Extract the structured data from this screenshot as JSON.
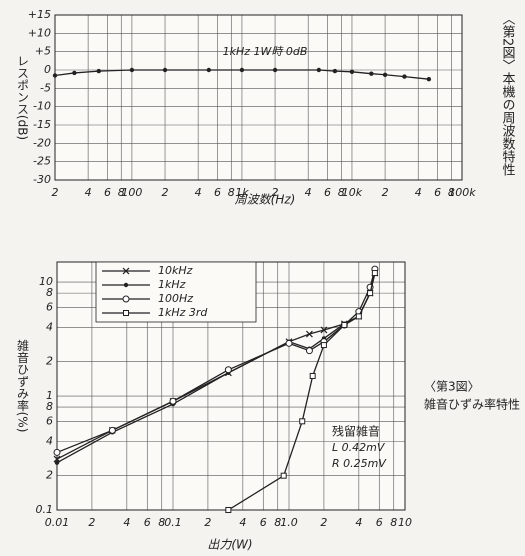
{
  "chart_data": [
    {
      "type": "line",
      "title": "〈第2図〉本機の周波数特性",
      "annotation": "1kHz 1W時 0dB",
      "x_label": "周波数(Hz)",
      "y_label": "レスポンス(dB)",
      "xscale": "log",
      "grid": true,
      "color": "#222222",
      "marker": "dot",
      "x": [
        20,
        30,
        50,
        100,
        200,
        500,
        1000,
        2000,
        5000,
        7000,
        10000,
        15000,
        20000,
        30000,
        50000
      ],
      "values": [
        -1.5,
        -0.8,
        -0.3,
        0,
        0,
        0,
        0,
        0,
        0,
        -0.3,
        -0.5,
        -1,
        -1.3,
        -1.8,
        -2.5
      ],
      "xlim": [
        20,
        100000
      ],
      "ylim": [
        -30,
        15
      ],
      "xticks": [
        {
          "value": 20,
          "label": "2"
        },
        {
          "value": 40,
          "label": "4"
        },
        {
          "value": 60,
          "label": "6"
        },
        {
          "value": 80,
          "label": "8"
        },
        100,
        {
          "value": 200,
          "label": "2"
        },
        {
          "value": 400,
          "label": "4"
        },
        {
          "value": 600,
          "label": "6"
        },
        {
          "value": 800,
          "label": "8"
        },
        {
          "value": 1000,
          "label": "1k"
        },
        {
          "value": 2000,
          "label": "2"
        },
        {
          "value": 4000,
          "label": "4"
        },
        {
          "value": 6000,
          "label": "6"
        },
        {
          "value": 8000,
          "label": "8"
        },
        {
          "value": 10000,
          "label": "10k"
        },
        {
          "value": 20000,
          "label": "2"
        },
        {
          "value": 40000,
          "label": "4"
        },
        {
          "value": 60000,
          "label": "6"
        },
        {
          "value": 80000,
          "label": "8"
        },
        {
          "value": 100000,
          "label": "100k"
        }
      ],
      "yticks": [
        {
          "value": 15,
          "label": "+15"
        },
        {
          "value": 10,
          "label": "+10"
        },
        {
          "value": 5,
          "label": "+5"
        },
        0,
        -5,
        -10,
        -15,
        -20,
        -25,
        -30
      ]
    },
    {
      "type": "line",
      "title": [
        "〈第3図〉",
        "雑音ひずみ率特性"
      ],
      "annotation": [
        "残留雑音",
        "L 0.42mV",
        "R 0.25mV"
      ],
      "x_label": "出力(W)",
      "y_label": "雑音ひずみ率(%)",
      "xscale": "log",
      "yscale": "log",
      "grid": true,
      "legend": "upper left",
      "series": [
        {
          "name": "10kHz",
          "color": "#222222",
          "marker": "x",
          "x": [
            0.01,
            0.03,
            0.1,
            0.3,
            1,
            1.5,
            2,
            3,
            4,
            5,
            5.5
          ],
          "values": [
            0.28,
            0.5,
            0.9,
            1.6,
            3,
            3.5,
            3.8,
            4.3,
            5,
            8,
            12
          ]
        },
        {
          "name": "1kHz",
          "color": "#222222",
          "marker": "dot",
          "x": [
            0.01,
            0.03,
            0.1,
            0.3,
            1,
            1.5,
            2,
            3,
            4,
            5,
            5.5
          ],
          "values": [
            0.26,
            0.48,
            0.85,
            1.6,
            3,
            2.6,
            3.2,
            4.3,
            5,
            8,
            12
          ]
        },
        {
          "name": "100Hz",
          "color": "#222222",
          "marker": "circle",
          "x": [
            0.01,
            0.03,
            0.1,
            0.3,
            1,
            1.5,
            2,
            3,
            4,
            5,
            5.5
          ],
          "values": [
            0.32,
            0.5,
            0.9,
            1.7,
            2.9,
            2.5,
            3,
            4.2,
            5.5,
            9,
            13
          ]
        },
        {
          "name": "1kHz 3rd",
          "color": "#222222",
          "marker": "square",
          "x": [
            0.3,
            0.9,
            1.3,
            1.6,
            2,
            3,
            4,
            5,
            5.5
          ],
          "values": [
            0.1,
            0.2,
            0.6,
            1.5,
            2.8,
            4.2,
            5,
            8,
            12
          ]
        }
      ],
      "xlim": [
        0.01,
        10
      ],
      "ylim": [
        0.1,
        15
      ],
      "xticks": [
        0.01,
        {
          "value": 0.02,
          "label": "2"
        },
        {
          "value": 0.04,
          "label": "4"
        },
        {
          "value": 0.06,
          "label": "6"
        },
        {
          "value": 0.08,
          "label": "8"
        },
        0.1,
        {
          "value": 0.2,
          "label": "2"
        },
        {
          "value": 0.4,
          "label": "4"
        },
        {
          "value": 0.6,
          "label": "6"
        },
        {
          "value": 0.8,
          "label": "8"
        },
        {
          "value": 1,
          "label": "1.0"
        },
        {
          "value": 2,
          "label": "2"
        },
        {
          "value": 4,
          "label": "4"
        },
        {
          "value": 6,
          "label": "6"
        },
        {
          "value": 8,
          "label": "8"
        },
        10
      ],
      "yticks": [
        0.1,
        {
          "value": 0.2,
          "label": "2"
        },
        {
          "value": 0.4,
          "label": "4"
        },
        {
          "value": 0.6,
          "label": "6"
        },
        {
          "value": 0.8,
          "label": "8"
        },
        1,
        2,
        4,
        6,
        8,
        10
      ]
    }
  ]
}
